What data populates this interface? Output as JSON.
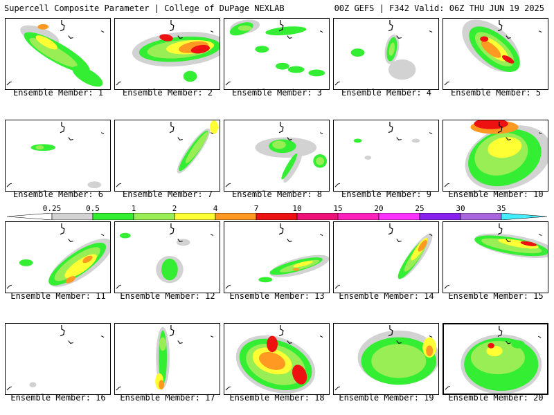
{
  "header": {
    "title": "Supercell Composite Parameter | College of DuPage NEXLAB",
    "run_info": "00Z GEFS | F342 Valid: 06Z THU JUN 19 2025"
  },
  "colorbar": {
    "labels": [
      "0.25",
      "0.5",
      "1",
      "2",
      "4",
      "7",
      "10",
      "15",
      "20",
      "25",
      "30",
      "35"
    ],
    "colors": [
      "#d2d2d2",
      "#33ee33",
      "#99ee55",
      "#ffff33",
      "#ff9922",
      "#ee1111",
      "#ee1177",
      "#ff22bb",
      "#ff33ff",
      "#8822ee",
      "#aa66dd",
      "#44eeff"
    ]
  },
  "panels": [
    {
      "caption": "Ensemble Member: 1"
    },
    {
      "caption": "Ensemble Member: 2"
    },
    {
      "caption": "Ensemble Member: 3"
    },
    {
      "caption": "Ensemble Member: 4"
    },
    {
      "caption": "Ensemble Member: 5"
    },
    {
      "caption": "Ensemble Member: 6"
    },
    {
      "caption": "Ensemble Member: 7"
    },
    {
      "caption": "Ensemble Member: 8"
    },
    {
      "caption": "Ensemble Member: 9"
    },
    {
      "caption": "Ensemble Member: 10"
    },
    {
      "caption": "Ensemble Member: 11"
    },
    {
      "caption": "Ensemble Member: 12"
    },
    {
      "caption": "Ensemble Member: 13"
    },
    {
      "caption": "Ensemble Member: 14"
    },
    {
      "caption": "Ensemble Member: 15"
    },
    {
      "caption": "Ensemble Member: 16"
    },
    {
      "caption": "Ensemble Member: 17"
    },
    {
      "caption": "Ensemble Member: 18"
    },
    {
      "caption": "Ensemble Member: 19"
    },
    {
      "caption": "Ensemble Member: 20"
    }
  ]
}
